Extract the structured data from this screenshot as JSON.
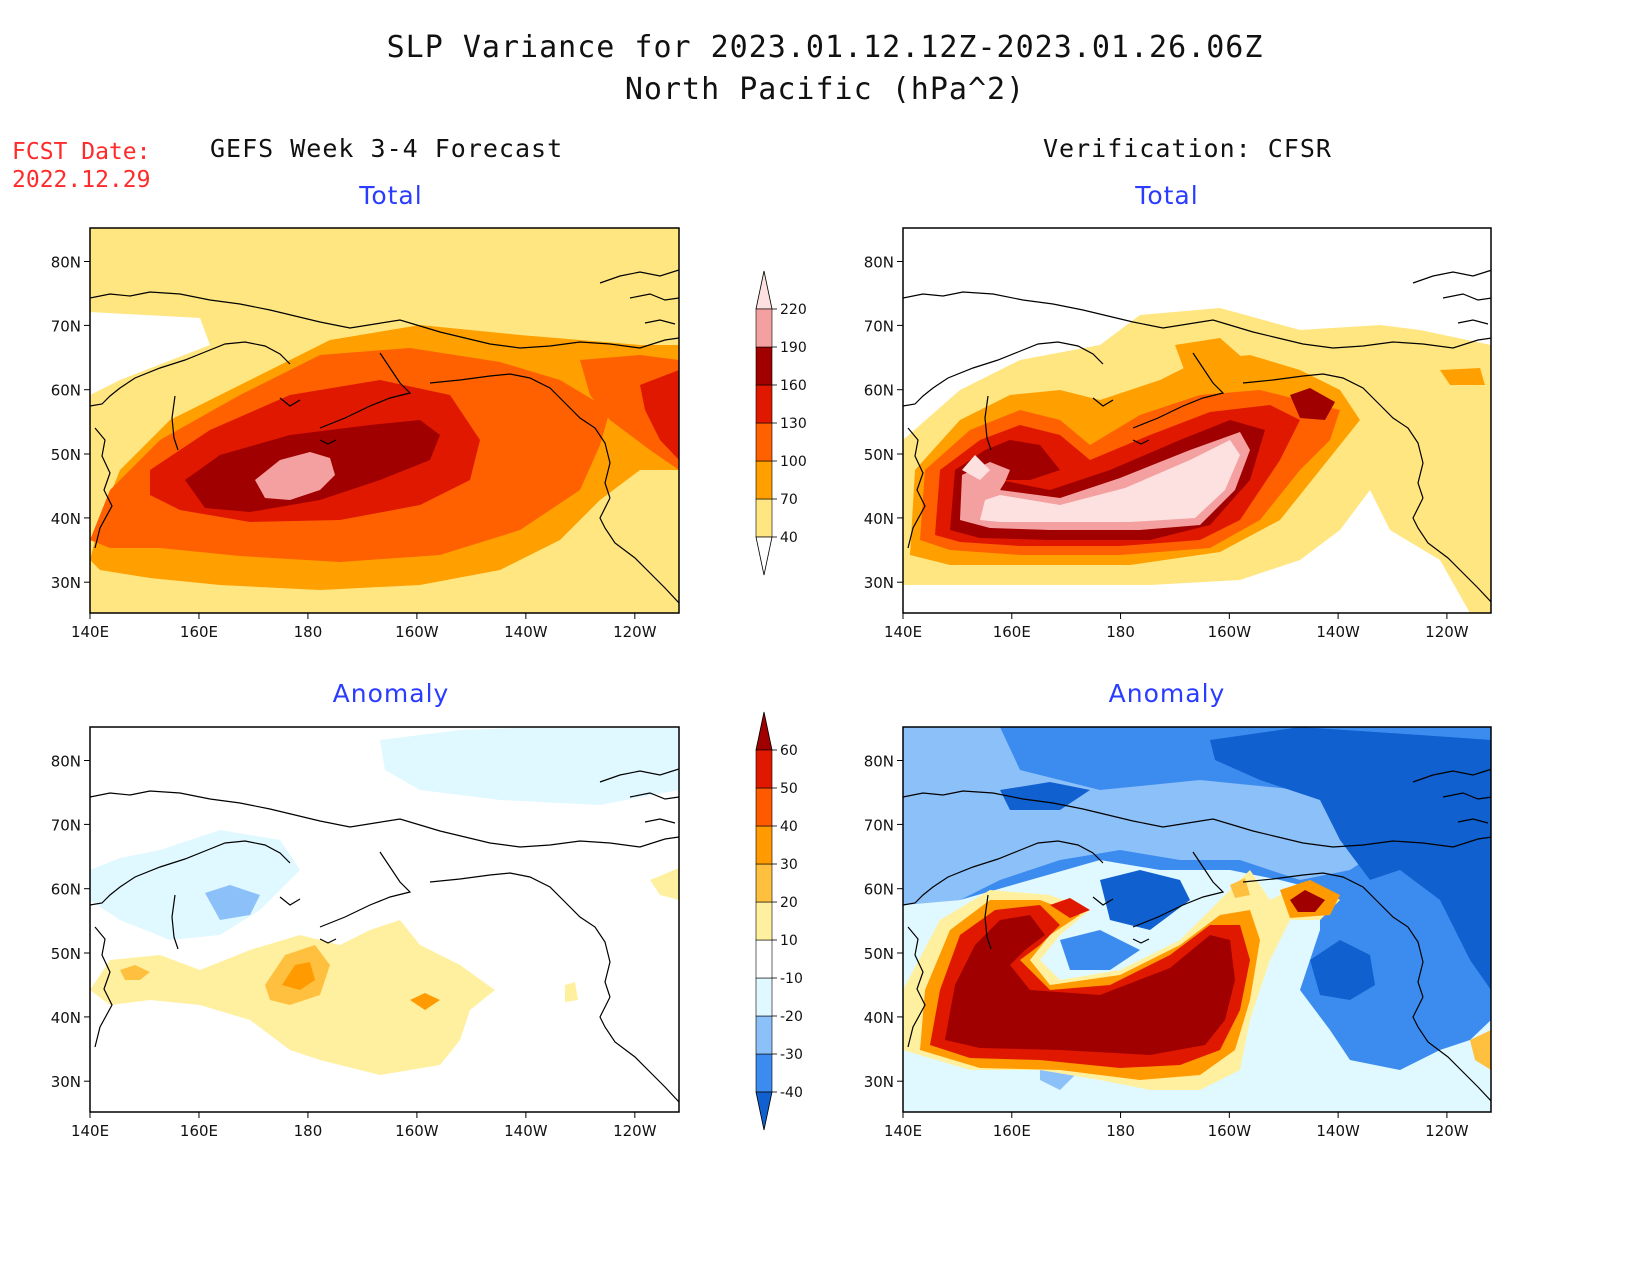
{
  "title": {
    "line1": "SLP Variance for 2023.01.12.12Z-2023.01.26.06Z",
    "line2": "North Pacific (hPa^2)"
  },
  "fcst_date": {
    "label": "FCST Date:",
    "value": "2022.12.29"
  },
  "columns": {
    "left": "GEFS Week 3-4 Forecast",
    "right": "Verification: CFSR"
  },
  "panels": {
    "top_left": {
      "subtitle": "Total"
    },
    "top_right": {
      "subtitle": "Total"
    },
    "bottom_left": {
      "subtitle": "Anomaly"
    },
    "bottom_right": {
      "subtitle": "Anomaly"
    }
  },
  "axes": {
    "lat_labels": [
      "80N",
      "70N",
      "60N",
      "50N",
      "40N",
      "30N"
    ],
    "lon_labels": [
      "140E",
      "160E",
      "180",
      "160W",
      "140W",
      "120W"
    ]
  },
  "colorbars": {
    "total": {
      "levels": [
        "40",
        "70",
        "100",
        "130",
        "160",
        "190",
        "220"
      ],
      "colors": [
        "#ffe680",
        "#ffa000",
        "#ff6000",
        "#e01800",
        "#a00000",
        "#f4a0a0",
        "#fde0e0"
      ]
    },
    "anomaly": {
      "levels": [
        "-40",
        "-30",
        "-20",
        "-10",
        "10",
        "20",
        "30",
        "40",
        "50",
        "60"
      ],
      "colors": [
        "#1060d0",
        "#3c8cf0",
        "#8cc0f8",
        "#e0f8ff",
        "#ffffff",
        "#fff0a0",
        "#ffc040",
        "#ff9a00",
        "#ff5a00",
        "#e01800",
        "#a00000"
      ]
    }
  }
}
